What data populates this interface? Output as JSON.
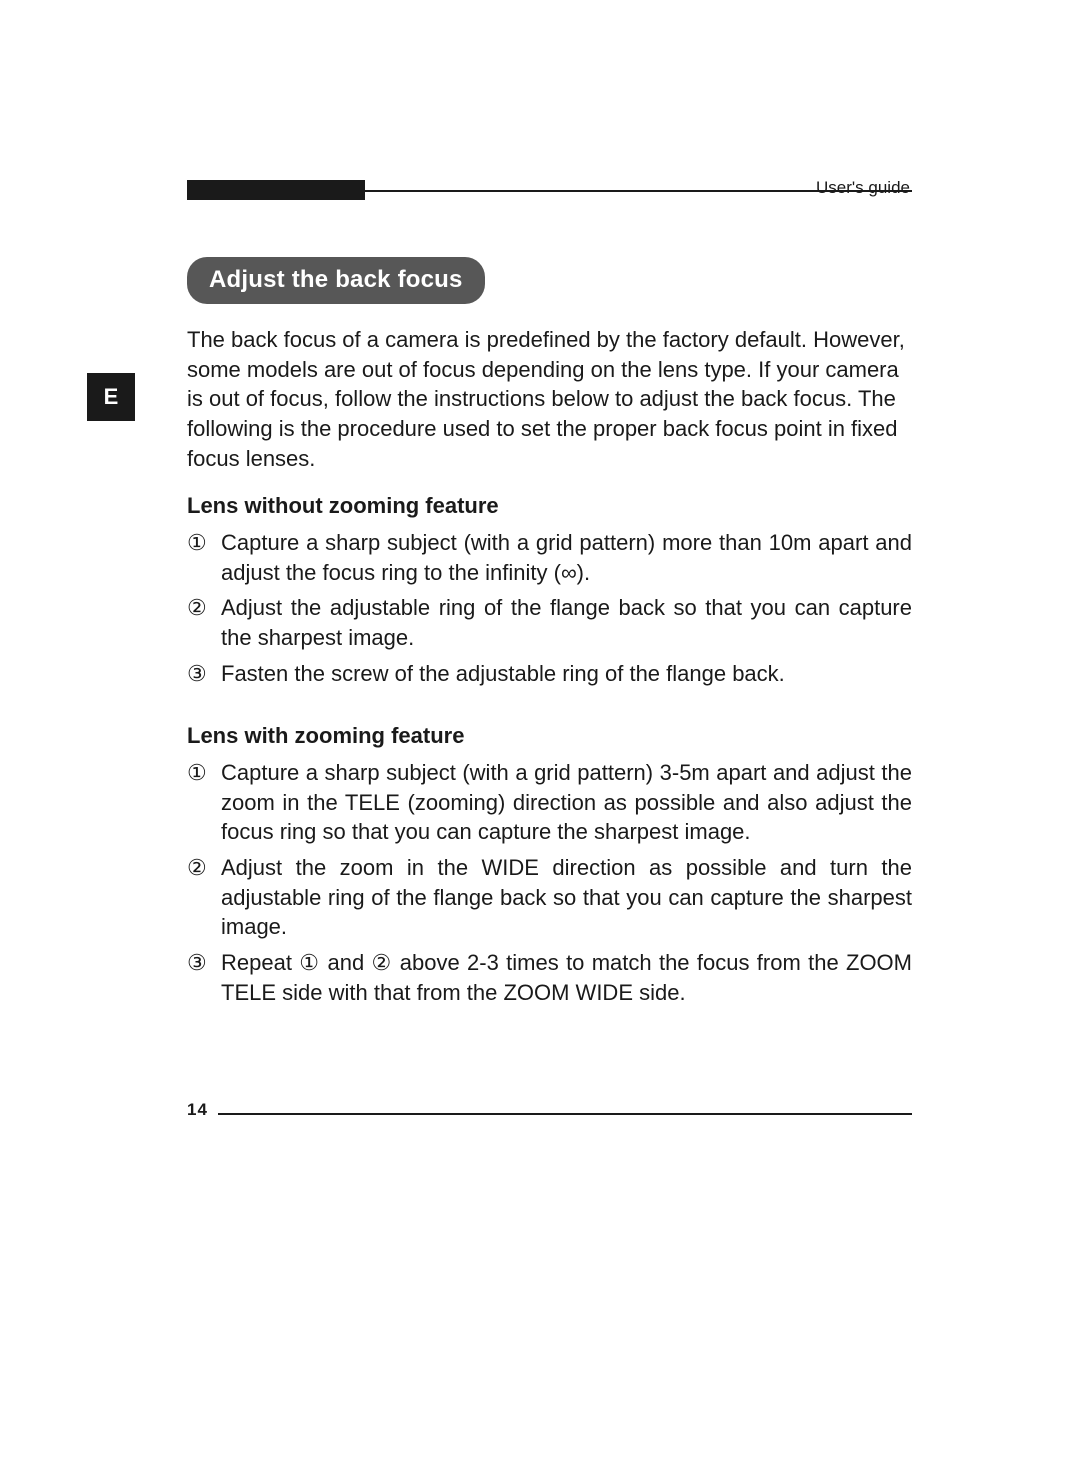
{
  "header": {
    "label": "User's guide"
  },
  "sideTab": "E",
  "title": "Adjust the back focus",
  "intro": "The back focus of a camera is predefined by the factory default. However, some models are out of focus depending on the lens type. If your camera is out of focus, follow the instructions below to adjust the back focus. The following is the procedure used to set the proper back focus point in fixed focus lenses.",
  "section1": {
    "heading": "Lens without zooming feature",
    "items": [
      {
        "n": "①",
        "t": "Capture a sharp subject (with a grid pattern) more than 10m apart and adjust the focus ring to the infinity (∞)."
      },
      {
        "n": "②",
        "t": "Adjust the adjustable ring of the flange back so that you can capture the sharpest image."
      },
      {
        "n": "③",
        "t": "Fasten the screw of the adjustable ring of the flange back."
      }
    ]
  },
  "section2": {
    "heading": "Lens with zooming feature",
    "items": [
      {
        "n": "①",
        "t": "Capture a sharp subject (with a grid pattern) 3-5m apart and adjust the zoom in the TELE (zooming) direction as possible and also adjust the focus ring so that you can capture the sharpest image."
      },
      {
        "n": "②",
        "t": "Adjust the zoom in the WIDE direction as possible and turn the adjustable ring of the flange back so that you can capture the sharpest image."
      },
      {
        "n": "③",
        "t": "Repeat ① and ② above 2-3 times to match the focus from the ZOOM TELE side with that from the ZOOM WIDE side."
      }
    ]
  },
  "pageNumber": "14",
  "colors": {
    "text": "#1a1a1a",
    "pillBg": "#575757",
    "pillFg": "#ffffff",
    "tabBg": "#1a1a1a",
    "tabFg": "#ffffff",
    "rule": "#1a1a1a",
    "bg": "#ffffff"
  },
  "typography": {
    "bodyFontSize": 22,
    "smallFontSize": 17,
    "lineHeight": 1.35
  },
  "layout": {
    "pageWidth": 1080,
    "pageHeight": 1473,
    "contentLeft": 187,
    "contentWidth": 725
  }
}
